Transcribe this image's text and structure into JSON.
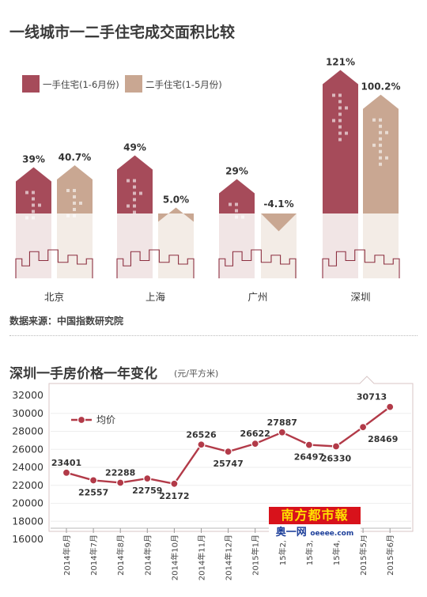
{
  "page_title": "一线城市一二手住宅成交面积比较",
  "source_note": "数据来源：中国指数研究院",
  "chart_data": [
    {
      "type": "bar",
      "title": "一线城市一二手住宅成交面积比较",
      "categories": [
        "北京",
        "上海",
        "广州",
        "深圳"
      ],
      "series": [
        {
          "name": "一手住宅(1-6月份)",
          "values": [
            39,
            49,
            29,
            121
          ],
          "labels": [
            "39%",
            "49%",
            "29%",
            "121%"
          ],
          "color": "#a64b5a"
        },
        {
          "name": "二手住宅(1-5月份)",
          "values": [
            40.7,
            5.0,
            -4.1,
            100.2
          ],
          "labels": [
            "40.7%",
            "5.0%",
            "-4.1%",
            "100.2%"
          ],
          "color": "#c9a792"
        }
      ],
      "legend_position": "top-left",
      "grid": false
    },
    {
      "type": "line",
      "title": "深圳一手房价格一年变化",
      "unit": "(元/平方米)",
      "categories": [
        "2014年6月",
        "2014年7月",
        "2014年8月",
        "2014年9月",
        "2014年10月",
        "2014年11月",
        "2014年12月",
        "2015年1月",
        "15年2月",
        "15年3月",
        "15年4月",
        "2015年5月",
        "2015年6月"
      ],
      "series": [
        {
          "name": "均价",
          "values": [
            23401,
            22557,
            22288,
            22759,
            22172,
            26526,
            25747,
            26622,
            27887,
            26497,
            26330,
            28469,
            30713
          ],
          "color": "#b23a48"
        }
      ],
      "y_ticks": [
        16000,
        18000,
        20000,
        22000,
        24000,
        26000,
        28000,
        30000,
        32000
      ],
      "ylim": [
        16000,
        32000
      ],
      "grid": true,
      "legend_position": "top-left"
    }
  ],
  "watermark": {
    "top": "南方都市報",
    "bottom_main": "奥一网",
    "bottom_sub": "oeeee.com"
  }
}
